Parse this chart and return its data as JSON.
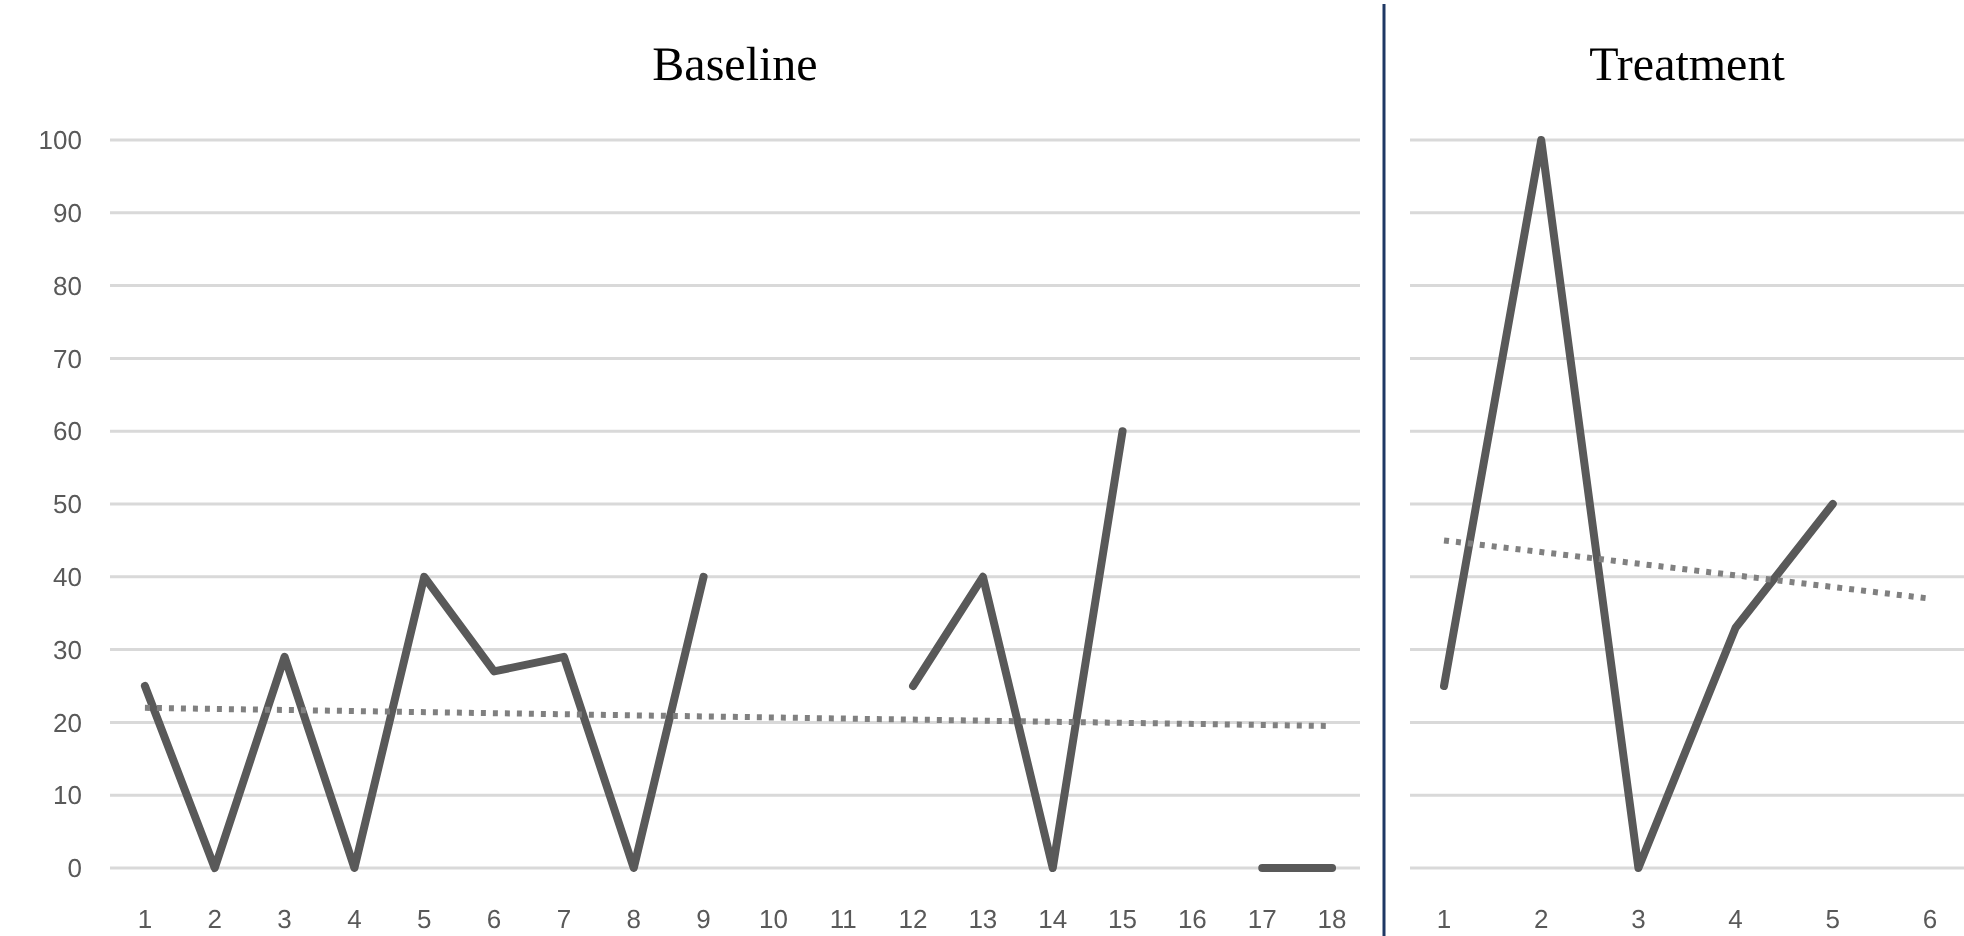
{
  "chart_data": [
    {
      "type": "line",
      "title": "Baseline",
      "x": [
        1,
        2,
        3,
        4,
        5,
        6,
        7,
        8,
        9,
        10,
        11,
        12,
        13,
        14,
        15,
        16,
        17,
        18
      ],
      "xlim": [
        0.5,
        18.4
      ],
      "xticks": [
        1,
        2,
        3,
        4,
        5,
        6,
        7,
        8,
        9,
        10,
        11,
        12,
        13,
        14,
        15,
        16,
        17,
        18
      ],
      "ylim": [
        0,
        100
      ],
      "yticks": [
        0,
        10,
        20,
        30,
        40,
        50,
        60,
        70,
        80,
        90,
        100
      ],
      "grid": "y",
      "series": [
        {
          "color": "#595959",
          "values": [
            25,
            0,
            29,
            0,
            40,
            27,
            29,
            0,
            40,
            null,
            null,
            25,
            40,
            0,
            60,
            null,
            0,
            0
          ]
        },
        {
          "type": "line",
          "color": "#808080",
          "line_style": "dotted",
          "x": [
            1,
            18
          ],
          "values": [
            22,
            19.5
          ]
        }
      ]
    },
    {
      "type": "line",
      "title": "Treatment",
      "x": [
        1,
        2,
        3,
        4,
        5
      ],
      "xlim": [
        0.65,
        6.35
      ],
      "xticks": [
        1,
        2,
        3,
        4,
        5,
        6
      ],
      "ylim": [
        0,
        100
      ],
      "yticks": [
        0,
        10,
        20,
        30,
        40,
        50,
        60,
        70,
        80,
        90,
        100
      ],
      "grid": "y",
      "tick_labels": "x",
      "series": [
        {
          "color": "#595959",
          "values": [
            25,
            100,
            0,
            33,
            50
          ]
        },
        {
          "type": "line",
          "color": "#808080",
          "line_style": "dotted",
          "x": [
            1,
            6
          ],
          "values": [
            45,
            37
          ]
        }
      ]
    }
  ]
}
